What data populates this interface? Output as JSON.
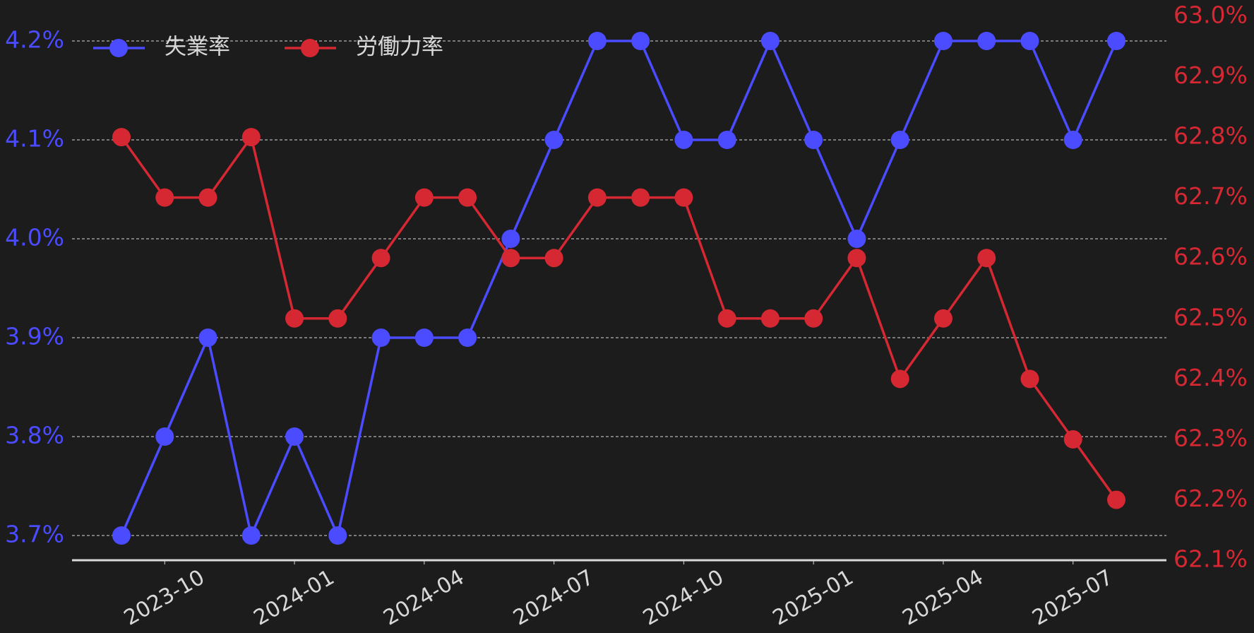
{
  "chart_data": {
    "type": "line",
    "x": [
      "2023-09",
      "2023-10",
      "2023-11",
      "2023-12",
      "2024-01",
      "2024-02",
      "2024-03",
      "2024-04",
      "2024-05",
      "2024-06",
      "2024-07",
      "2024-08",
      "2024-09",
      "2024-10",
      "2024-11",
      "2024-12",
      "2025-01",
      "2025-02",
      "2025-03",
      "2025-04",
      "2025-05",
      "2025-06",
      "2025-07",
      "2025-08"
    ],
    "xticks": [
      "2023-10",
      "2024-01",
      "2024-04",
      "2024-07",
      "2024-10",
      "2025-01",
      "2025-04",
      "2025-07"
    ],
    "series": [
      {
        "name": "失業率",
        "color": "#4b4bff",
        "values": [
          3.7,
          3.8,
          3.9,
          3.7,
          3.8,
          3.7,
          3.9,
          3.9,
          3.9,
          4.0,
          4.1,
          4.2,
          4.2,
          4.1,
          4.1,
          4.2,
          4.1,
          4.0,
          4.1,
          4.2,
          4.2,
          4.2,
          4.1,
          4.2
        ]
      },
      {
        "name": "労働力率",
        "color": "#d62832",
        "axis": "y2",
        "values": [
          62.8,
          62.7,
          62.7,
          62.8,
          62.5,
          62.5,
          62.6,
          62.7,
          62.7,
          62.6,
          62.6,
          62.7,
          62.7,
          62.7,
          62.5,
          62.5,
          62.5,
          62.6,
          62.4,
          62.5,
          62.6,
          62.4,
          62.3,
          62.2
        ]
      }
    ],
    "ylim": [
      3.675,
      4.225
    ],
    "yticks": [
      {
        "value": 3.7,
        "label": "3.7%"
      },
      {
        "value": 3.8,
        "label": "3.8%"
      },
      {
        "value": 3.9,
        "label": "3.9%"
      },
      {
        "value": 4.0,
        "label": "4.0%"
      },
      {
        "value": 4.1,
        "label": "4.1%"
      },
      {
        "value": 4.2,
        "label": "4.2%"
      }
    ],
    "y2lim": [
      62.1,
      63.0
    ],
    "y2ticks": [
      {
        "value": 62.1,
        "label": "62.1%"
      },
      {
        "value": 62.2,
        "label": "62.2%"
      },
      {
        "value": 62.3,
        "label": "62.3%"
      },
      {
        "value": 62.4,
        "label": "62.4%"
      },
      {
        "value": 62.5,
        "label": "62.5%"
      },
      {
        "value": 62.6,
        "label": "62.6%"
      },
      {
        "value": 62.7,
        "label": "62.7%"
      },
      {
        "value": 62.8,
        "label": "62.8%"
      },
      {
        "value": 62.9,
        "label": "62.9%"
      },
      {
        "value": 63.0,
        "label": "63.0%"
      }
    ],
    "grid": true,
    "legend": "upper-left"
  }
}
